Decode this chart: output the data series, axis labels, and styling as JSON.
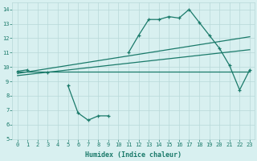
{
  "xlabel": "Humidex (Indice chaleur)",
  "x": [
    0,
    1,
    2,
    3,
    4,
    5,
    6,
    7,
    8,
    9,
    10,
    11,
    12,
    13,
    14,
    15,
    16,
    17,
    18,
    19,
    20,
    21,
    22,
    23
  ],
  "line1": [
    9.7,
    9.8,
    null,
    9.6,
    null,
    8.7,
    6.8,
    6.3,
    6.6,
    6.6,
    null,
    11.0,
    12.2,
    13.3,
    13.3,
    13.5,
    13.4,
    14.0,
    13.1,
    12.2,
    11.3,
    10.1,
    8.4,
    9.8
  ],
  "line2_start": 9.7,
  "line2_end": 9.7,
  "line3_start": 9.55,
  "line3_end": 12.1,
  "line4_start": 9.4,
  "line4_end": 11.2,
  "color": "#1a7a6a",
  "bg_color": "#d8f0f0",
  "grid_color": "#b8d8d8",
  "xlim": [
    -0.5,
    23.5
  ],
  "ylim": [
    5,
    14.5
  ],
  "yticks": [
    5,
    6,
    7,
    8,
    9,
    10,
    11,
    12,
    13,
    14
  ],
  "xticks": [
    0,
    1,
    2,
    3,
    4,
    5,
    6,
    7,
    8,
    9,
    10,
    11,
    12,
    13,
    14,
    15,
    16,
    17,
    18,
    19,
    20,
    21,
    22,
    23
  ]
}
